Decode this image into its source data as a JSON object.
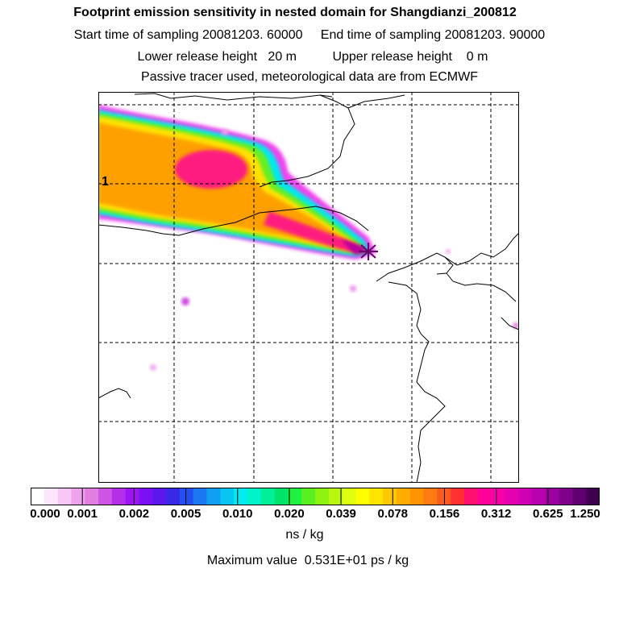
{
  "header": {
    "title": "Footprint emission sensitivity in nested domain for Shangdianzi_200812",
    "sampling_line": "Start time of sampling 20081203. 60000     End time of sampling 20081203. 90000",
    "release_line": "Lower release height   20 m          Upper release height    0 m",
    "tracer_line": "Passive tracer used, meteorological data are from ECMWF"
  },
  "map": {
    "grid_label": "1",
    "receptor_symbol": "receptor-star"
  },
  "colorbar": {
    "ticks": [
      "0.000",
      "0.001",
      "0.002",
      "0.005",
      "0.010",
      "0.020",
      "0.039",
      "0.078",
      "0.156",
      "0.312",
      "0.625",
      "1.250"
    ],
    "colors": [
      "#ffffff",
      "#fce6fb",
      "#f7c8f5",
      "#f0a3ec",
      "#e27ee2",
      "#cc55e6",
      "#b52ee8",
      "#9c15f2",
      "#7a10f5",
      "#5a18ee",
      "#3a28e8",
      "#2050f0",
      "#1a78f2",
      "#10a0f2",
      "#08c4f0",
      "#00eaf0",
      "#00f2c8",
      "#00f09a",
      "#00e46a",
      "#20f040",
      "#58f020",
      "#8cf410",
      "#b8f810",
      "#e0ff10",
      "#ffff00",
      "#ffe400",
      "#ffc800",
      "#ffae00",
      "#ff9400",
      "#ff7a10",
      "#ff5a20",
      "#ff3030",
      "#ff1070",
      "#ff0098",
      "#f800a8",
      "#e400b0",
      "#d000b4",
      "#b800b0",
      "#9c00a0",
      "#80008c",
      "#600070",
      "#400050"
    ],
    "unit": "ns / kg"
  },
  "footer": {
    "max_value": "Maximum value  0.531E+01 ps / kg"
  }
}
